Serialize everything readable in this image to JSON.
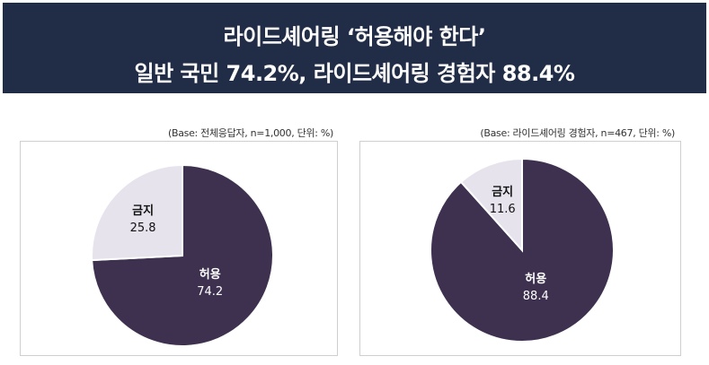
{
  "header": {
    "title_line1": "라이드셰어링 ‘허용해야 한다’",
    "title_line2": "일반 국민 74.2%, 라이드셰어링 경험자 88.4%"
  },
  "colors": {
    "header_bg": "#212c46",
    "allow": "#3e3150",
    "ban": "#e6e3ed"
  },
  "chart_data": [
    {
      "type": "pie",
      "note": "(Base: 전체응답자, n=1,000, 단위: %)",
      "categories": [
        "허용",
        "금지"
      ],
      "values": [
        74.2,
        25.8
      ]
    },
    {
      "type": "pie",
      "note": "(Base: 라이드셰어링 경험자, n=467, 단위: %)",
      "categories": [
        "허용",
        "금지"
      ],
      "values": [
        88.4,
        11.6
      ]
    }
  ]
}
